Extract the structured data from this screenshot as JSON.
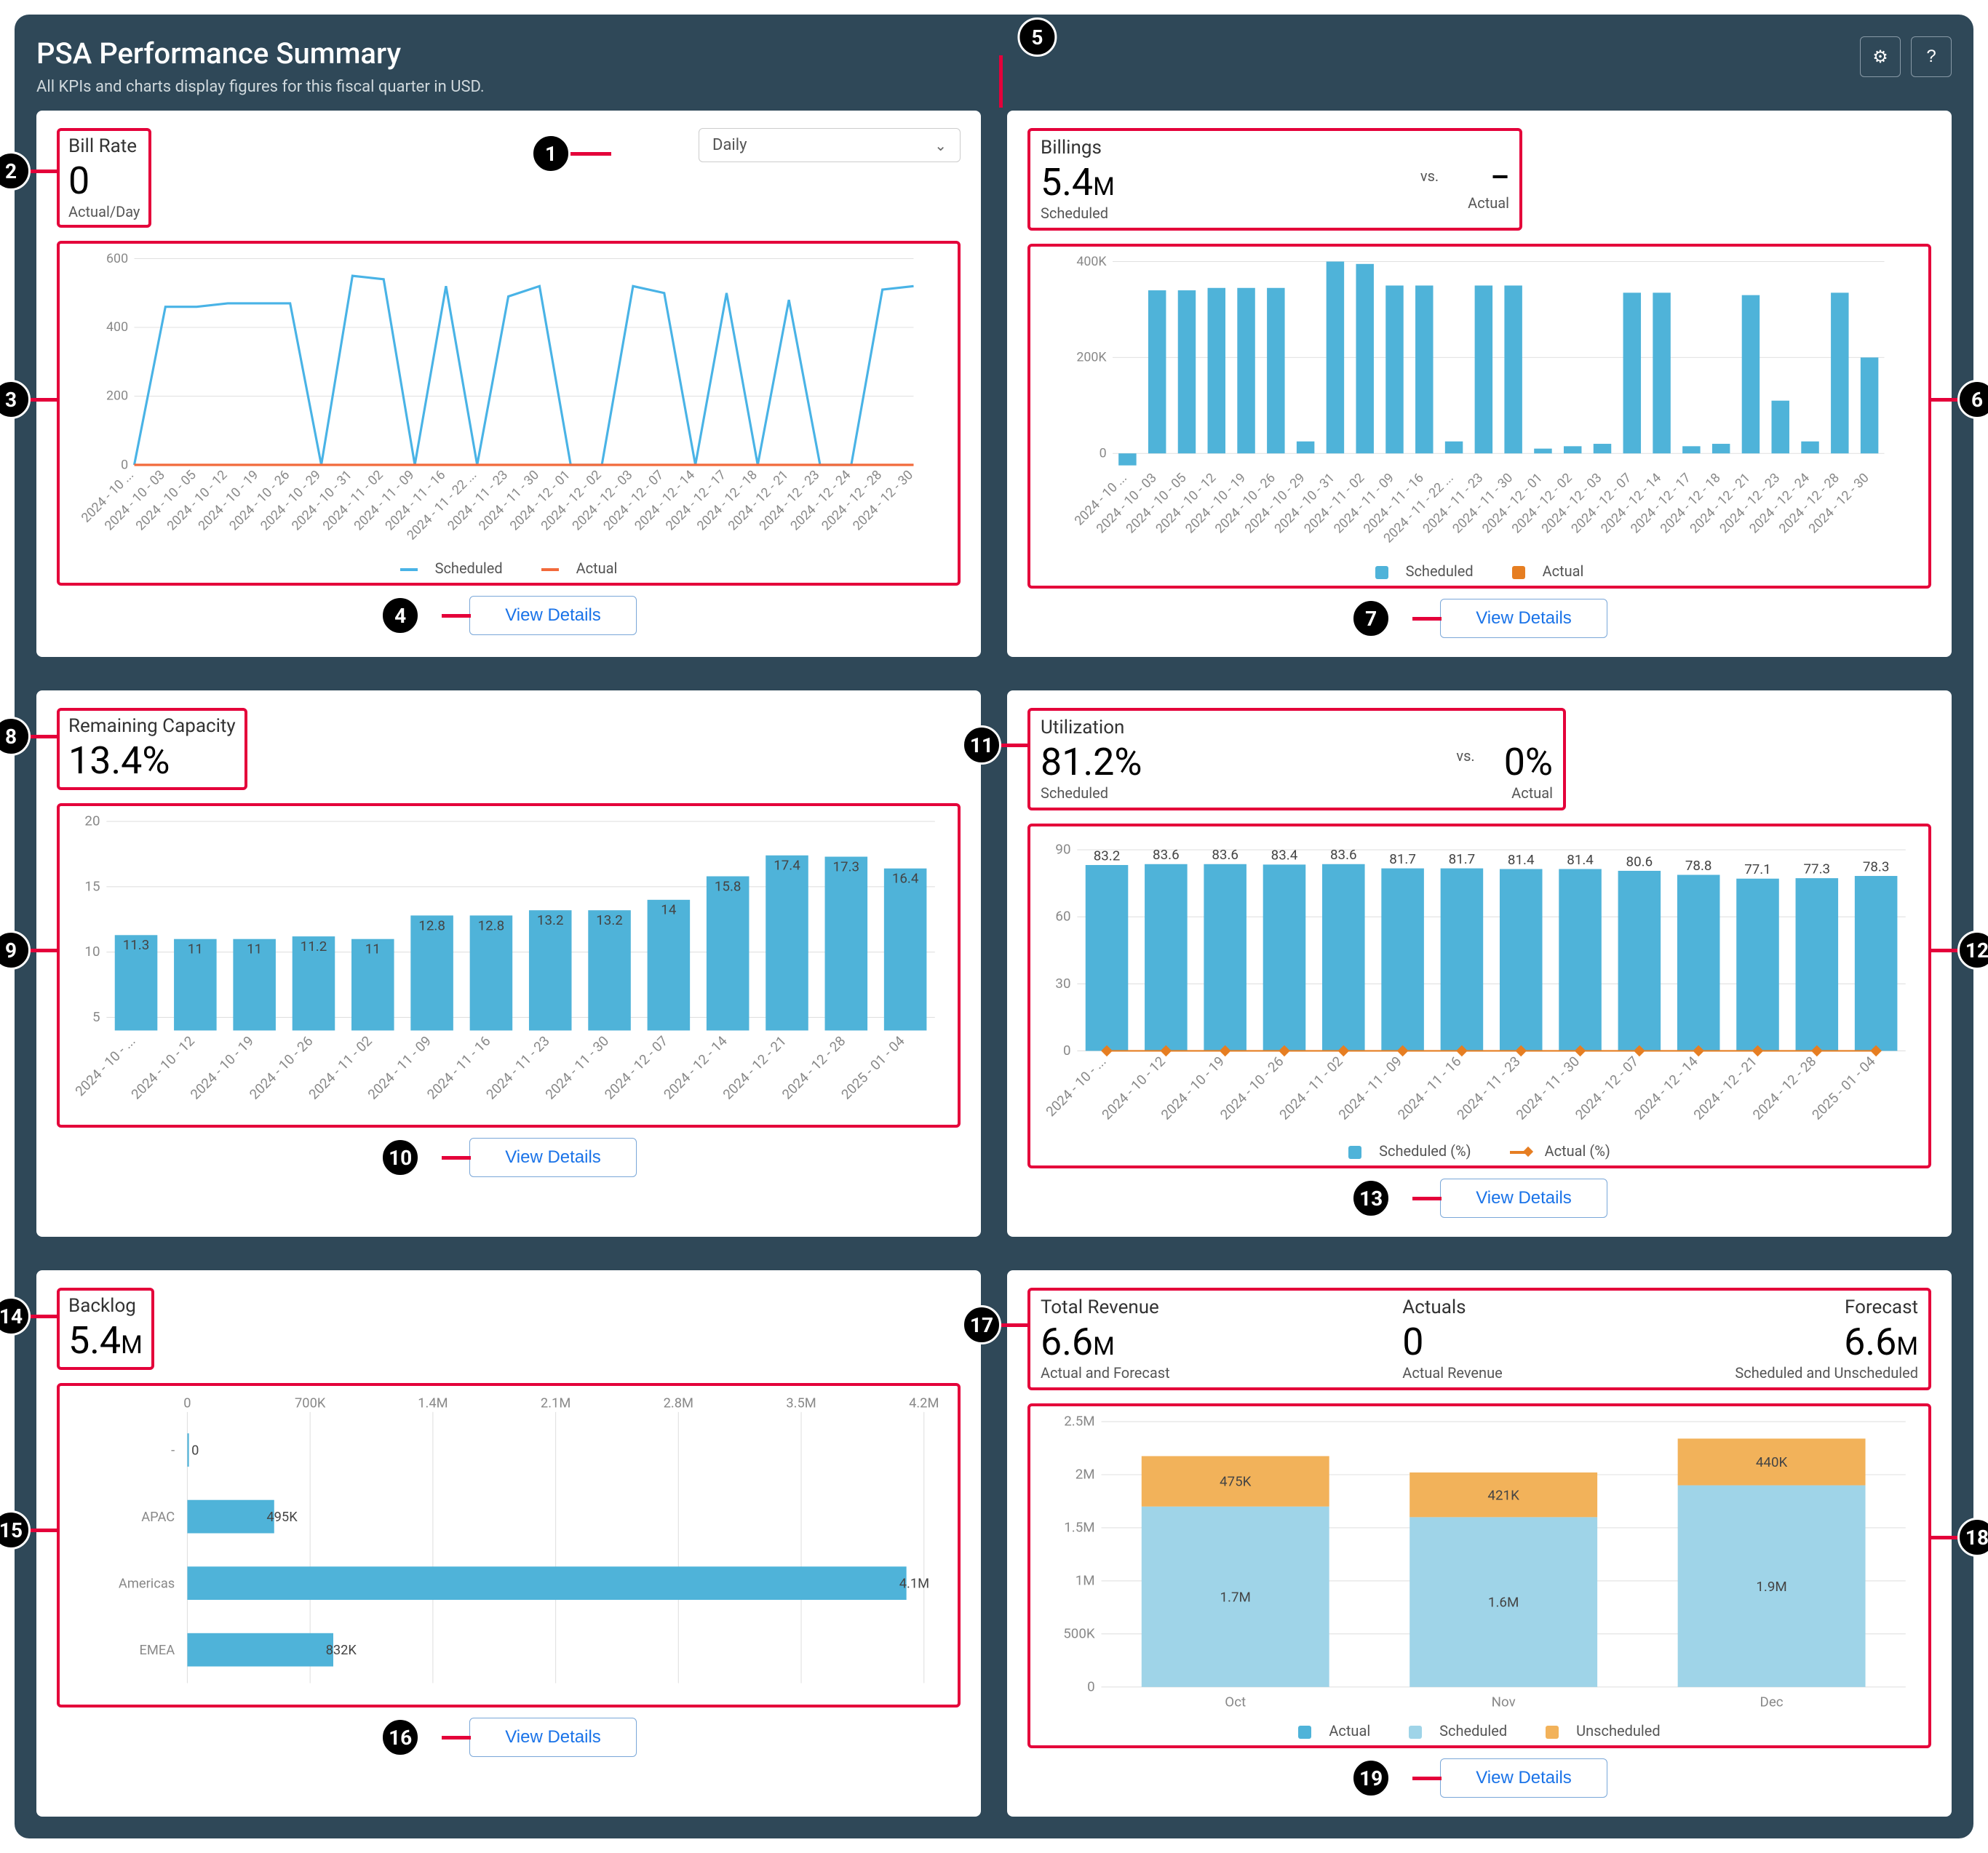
{
  "header": {
    "title": "PSA Performance Summary",
    "subtitle": "All KPIs and charts display figures for this fiscal quarter in USD."
  },
  "icons": {
    "gear": "⚙",
    "help": "?"
  },
  "colors": {
    "scheduled_line": "#49b3e6",
    "actual_line": "#f26a3b",
    "bar_blue": "#4fb3d9",
    "bar_light": "#9fd4e8",
    "bar_orange": "#f2b25a",
    "bar_orange_dark": "#e67e22",
    "grid": "#e0e0e0",
    "highlight": "#e4003a"
  },
  "billRate": {
    "title": "Bill Rate",
    "value": "0",
    "sub": "Actual/Day",
    "select": "Daily",
    "yTicks": [
      "0",
      "200",
      "400",
      "600"
    ],
    "xLabels": [
      "2024 - 10 ...",
      "2024 - 10 - 03",
      "2024 - 10 - 05",
      "2024 - 10 - 12",
      "2024 - 10 - 19",
      "2024 - 10 - 26",
      "2024 - 10 - 29",
      "2024 - 10 - 31",
      "2024 - 11 - 02",
      "2024 - 11 - 09",
      "2024 - 11 - 16",
      "2024 - 11 - 22 ...",
      "2024 - 11 - 23",
      "2024 - 11 - 30",
      "2024 - 12 - 01",
      "2024 - 12 - 02",
      "2024 - 12 - 03",
      "2024 - 12 - 07",
      "2024 - 12 - 14",
      "2024 - 12 - 17",
      "2024 - 12 - 18",
      "2024 - 12 - 21",
      "2024 - 12 - 23",
      "2024 - 12 - 24",
      "2024 - 12 - 28",
      "2024 - 12 - 30"
    ],
    "scheduled": [
      0,
      460,
      460,
      470,
      470,
      470,
      0,
      550,
      540,
      0,
      520,
      0,
      490,
      520,
      0,
      0,
      520,
      500,
      0,
      500,
      0,
      480,
      0,
      0,
      510,
      520
    ],
    "actual": [
      0,
      0,
      0,
      0,
      0,
      0,
      0,
      0,
      0,
      0,
      0,
      0,
      0,
      0,
      0,
      0,
      0,
      0,
      0,
      0,
      0,
      0,
      0,
      0,
      0,
      0
    ],
    "legend": [
      "Scheduled",
      "Actual"
    ],
    "button": "View Details"
  },
  "billings": {
    "title": "Billings",
    "value": "5.4",
    "sub": "Scheduled",
    "vs": "vs.",
    "value2": "–",
    "sub2": "Actual",
    "yTicks": [
      "0",
      "200K",
      "400K"
    ],
    "xLabels": [
      "2024 - 10 ...",
      "2024 - 10 - 03",
      "2024 - 10 - 05",
      "2024 - 10 - 12",
      "2024 - 10 - 19",
      "2024 - 10 - 26",
      "2024 - 10 - 29",
      "2024 - 10 - 31",
      "2024 - 11 - 02",
      "2024 - 11 - 09",
      "2024 - 11 - 16",
      "2024 - 11 - 22 ...",
      "2024 - 11 - 23",
      "2024 - 11 - 30",
      "2024 - 12 - 01",
      "2024 - 12 - 02",
      "2024 - 12 - 03",
      "2024 - 12 - 07",
      "2024 - 12 - 14",
      "2024 - 12 - 17",
      "2024 - 12 - 18",
      "2024 - 12 - 21",
      "2024 - 12 - 23",
      "2024 - 12 - 24",
      "2024 - 12 - 28",
      "2024 - 12 - 30"
    ],
    "scheduled": [
      -25,
      340,
      340,
      345,
      345,
      345,
      25,
      400,
      395,
      350,
      350,
      25,
      350,
      350,
      10,
      15,
      20,
      335,
      335,
      15,
      20,
      330,
      110,
      25,
      335,
      200
    ],
    "legend": [
      "Scheduled",
      "Actual"
    ],
    "button": "View Details"
  },
  "capacity": {
    "title": "Remaining Capacity",
    "value": "13.4%",
    "yTicks": [
      "5",
      "10",
      "15",
      "20"
    ],
    "xLabels": [
      "2024 - 10 - ...",
      "2024 - 10 - 12",
      "2024 - 10 - 19",
      "2024 - 10 - 26",
      "2024 - 11 - 02",
      "2024 - 11 - 09",
      "2024 - 11 - 16",
      "2024 - 11 - 23",
      "2024 - 11 - 30",
      "2024 - 12 - 07",
      "2024 - 12 - 14",
      "2024 - 12 - 21",
      "2024 - 12 - 28",
      "2025 - 01 - 04"
    ],
    "values": [
      11.3,
      11,
      11,
      11.2,
      11,
      12.8,
      12.8,
      13.2,
      13.2,
      14,
      15.8,
      17.4,
      17.3,
      16.4
    ],
    "button": "View Details"
  },
  "utilization": {
    "title": "Utilization",
    "value": "81.2%",
    "sub": "Scheduled",
    "vs": "vs.",
    "value2": "0%",
    "sub2": "Actual",
    "yTicks": [
      "0",
      "30",
      "60",
      "90"
    ],
    "xLabels": [
      "2024 - 10 - ...",
      "2024 - 10 - 12",
      "2024 - 10 - 19",
      "2024 - 10 - 26",
      "2024 - 11 - 02",
      "2024 - 11 - 09",
      "2024 - 11 - 16",
      "2024 - 11 - 23",
      "2024 - 11 - 30",
      "2024 - 12 - 07",
      "2024 - 12 - 14",
      "2024 - 12 - 21",
      "2024 - 12 - 28",
      "2025 - 01 - 04"
    ],
    "scheduled": [
      83.2,
      83.6,
      83.6,
      83.4,
      83.6,
      81.7,
      81.7,
      81.4,
      81.4,
      80.6,
      78.8,
      77.1,
      77.3,
      78.3
    ],
    "actual": [
      0,
      0,
      0,
      0,
      0,
      0,
      0,
      0,
      0,
      0,
      0,
      0,
      0,
      0
    ],
    "legend": [
      "Scheduled (%)",
      "Actual (%)"
    ],
    "button": "View Details"
  },
  "backlog": {
    "title": "Backlog",
    "value": "5.4",
    "xTicks": [
      "0",
      "700K",
      "1.4M",
      "2.1M",
      "2.8M",
      "3.5M",
      "4.2M"
    ],
    "rows": [
      {
        "label": "-",
        "value": 0,
        "display": "0"
      },
      {
        "label": "APAC",
        "value": 495000,
        "display": "495K"
      },
      {
        "label": "Americas",
        "value": 4100000,
        "display": "4.1M"
      },
      {
        "label": "EMEA",
        "value": 832000,
        "display": "832K"
      }
    ],
    "max": 4200000,
    "button": "View Details"
  },
  "revenue": {
    "col1": {
      "title": "Total Revenue",
      "value": "6.6",
      "sub": "Actual and Forecast"
    },
    "col2": {
      "title": "Actuals",
      "value": "0",
      "sub": "Actual Revenue"
    },
    "col3": {
      "title": "Forecast",
      "value": "6.6",
      "sub": "Scheduled and Unscheduled"
    },
    "yTicks": [
      "0",
      "500K",
      "1M",
      "1.5M",
      "2M",
      "2.5M"
    ],
    "months": [
      "Oct",
      "Nov",
      "Dec"
    ],
    "scheduled": [
      1700000,
      1600000,
      1900000
    ],
    "unscheduled": [
      475000,
      421000,
      440000
    ],
    "scheduledLabels": [
      "1.7M",
      "1.6M",
      "1.9M"
    ],
    "unscheduledLabels": [
      "475K",
      "421K",
      "440K"
    ],
    "legend": [
      "Actual",
      "Scheduled",
      "Unscheduled"
    ],
    "button": "View Details"
  }
}
